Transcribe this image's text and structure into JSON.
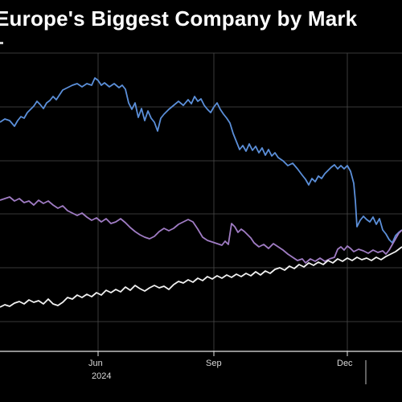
{
  "chart_data": {
    "type": "line",
    "title": "Europe's Biggest Company by Mark",
    "x_tick_labels": [
      "Jun",
      "Sep",
      "Dec"
    ],
    "x_year_label": "2024",
    "grid": true,
    "legend": "none",
    "y_axis": "unlabeled",
    "series": [
      {
        "color": "#5b8fd9",
        "points": [
          [
            0,
            152
          ],
          [
            6,
            148
          ],
          [
            12,
            150
          ],
          [
            18,
            157
          ],
          [
            22,
            150
          ],
          [
            26,
            145
          ],
          [
            30,
            147
          ],
          [
            34,
            140
          ],
          [
            38,
            136
          ],
          [
            42,
            132
          ],
          [
            46,
            126
          ],
          [
            50,
            130
          ],
          [
            54,
            135
          ],
          [
            58,
            128
          ],
          [
            62,
            125
          ],
          [
            66,
            120
          ],
          [
            70,
            124
          ],
          [
            74,
            118
          ],
          [
            78,
            112
          ],
          [
            84,
            109
          ],
          [
            90,
            106
          ],
          [
            96,
            104
          ],
          [
            102,
            108
          ],
          [
            108,
            104
          ],
          [
            114,
            106
          ],
          [
            118,
            97
          ],
          [
            122,
            100
          ],
          [
            126,
            106
          ],
          [
            130,
            103
          ],
          [
            136,
            108
          ],
          [
            142,
            104
          ],
          [
            148,
            109
          ],
          [
            152,
            106
          ],
          [
            156,
            111
          ],
          [
            160,
            128
          ],
          [
            164,
            136
          ],
          [
            168,
            128
          ],
          [
            172,
            146
          ],
          [
            176,
            135
          ],
          [
            180,
            150
          ],
          [
            184,
            138
          ],
          [
            188,
            147
          ],
          [
            192,
            152
          ],
          [
            196,
            163
          ],
          [
            200,
            147
          ],
          [
            204,
            142
          ],
          [
            210,
            136
          ],
          [
            216,
            131
          ],
          [
            222,
            126
          ],
          [
            228,
            131
          ],
          [
            234,
            124
          ],
          [
            238,
            129
          ],
          [
            242,
            120
          ],
          [
            246,
            126
          ],
          [
            250,
            123
          ],
          [
            254,
            131
          ],
          [
            258,
            136
          ],
          [
            262,
            140
          ],
          [
            266,
            133
          ],
          [
            270,
            128
          ],
          [
            274,
            136
          ],
          [
            278,
            142
          ],
          [
            282,
            147
          ],
          [
            286,
            153
          ],
          [
            290,
            166
          ],
          [
            294,
            176
          ],
          [
            298,
            186
          ],
          [
            302,
            181
          ],
          [
            306,
            188
          ],
          [
            310,
            179
          ],
          [
            314,
            187
          ],
          [
            318,
            182
          ],
          [
            322,
            190
          ],
          [
            326,
            184
          ],
          [
            330,
            193
          ],
          [
            334,
            186
          ],
          [
            338,
            194
          ],
          [
            342,
            190
          ],
          [
            346,
            196
          ],
          [
            352,
            200
          ],
          [
            358,
            206
          ],
          [
            364,
            203
          ],
          [
            370,
            210
          ],
          [
            376,
            218
          ],
          [
            380,
            223
          ],
          [
            384,
            230
          ],
          [
            388,
            222
          ],
          [
            392,
            226
          ],
          [
            396,
            219
          ],
          [
            400,
            222
          ],
          [
            404,
            216
          ],
          [
            408,
            212
          ],
          [
            412,
            208
          ],
          [
            416,
            205
          ],
          [
            420,
            210
          ],
          [
            424,
            206
          ],
          [
            428,
            210
          ],
          [
            432,
            206
          ],
          [
            436,
            213
          ],
          [
            440,
            228
          ],
          [
            442,
            250
          ],
          [
            444,
            282
          ],
          [
            448,
            274
          ],
          [
            452,
            269
          ],
          [
            456,
            273
          ],
          [
            460,
            276
          ],
          [
            464,
            270
          ],
          [
            468,
            279
          ],
          [
            472,
            272
          ],
          [
            476,
            286
          ],
          [
            480,
            291
          ],
          [
            484,
            298
          ],
          [
            488,
            302
          ],
          [
            492,
            293
          ],
          [
            496,
            289
          ],
          [
            500,
            286
          ]
        ]
      },
      {
        "color": "#a07cc4",
        "points": [
          [
            0,
            249
          ],
          [
            6,
            247
          ],
          [
            12,
            245
          ],
          [
            18,
            250
          ],
          [
            24,
            247
          ],
          [
            30,
            252
          ],
          [
            36,
            250
          ],
          [
            42,
            255
          ],
          [
            48,
            249
          ],
          [
            54,
            253
          ],
          [
            60,
            250
          ],
          [
            66,
            255
          ],
          [
            72,
            259
          ],
          [
            78,
            256
          ],
          [
            84,
            262
          ],
          [
            90,
            265
          ],
          [
            96,
            268
          ],
          [
            102,
            265
          ],
          [
            108,
            270
          ],
          [
            114,
            274
          ],
          [
            120,
            271
          ],
          [
            126,
            276
          ],
          [
            132,
            272
          ],
          [
            138,
            278
          ],
          [
            144,
            276
          ],
          [
            150,
            272
          ],
          [
            156,
            277
          ],
          [
            162,
            283
          ],
          [
            168,
            288
          ],
          [
            174,
            292
          ],
          [
            180,
            295
          ],
          [
            186,
            297
          ],
          [
            192,
            294
          ],
          [
            198,
            288
          ],
          [
            204,
            284
          ],
          [
            210,
            287
          ],
          [
            216,
            284
          ],
          [
            222,
            279
          ],
          [
            228,
            276
          ],
          [
            234,
            273
          ],
          [
            240,
            276
          ],
          [
            246,
            285
          ],
          [
            252,
            295
          ],
          [
            258,
            299
          ],
          [
            264,
            301
          ],
          [
            270,
            303
          ],
          [
            276,
            305
          ],
          [
            280,
            300
          ],
          [
            284,
            304
          ],
          [
            288,
            278
          ],
          [
            292,
            282
          ],
          [
            296,
            289
          ],
          [
            300,
            285
          ],
          [
            304,
            288
          ],
          [
            308,
            292
          ],
          [
            312,
            296
          ],
          [
            316,
            302
          ],
          [
            322,
            307
          ],
          [
            328,
            304
          ],
          [
            334,
            309
          ],
          [
            340,
            303
          ],
          [
            346,
            307
          ],
          [
            352,
            311
          ],
          [
            358,
            316
          ],
          [
            364,
            320
          ],
          [
            370,
            324
          ],
          [
            376,
            322
          ],
          [
            380,
            327
          ],
          [
            386,
            322
          ],
          [
            392,
            325
          ],
          [
            398,
            321
          ],
          [
            404,
            325
          ],
          [
            410,
            322
          ],
          [
            416,
            320
          ],
          [
            420,
            310
          ],
          [
            424,
            307
          ],
          [
            428,
            311
          ],
          [
            432,
            306
          ],
          [
            436,
            309
          ],
          [
            440,
            313
          ],
          [
            446,
            310
          ],
          [
            452,
            312
          ],
          [
            458,
            315
          ],
          [
            464,
            311
          ],
          [
            470,
            314
          ],
          [
            476,
            312
          ],
          [
            480,
            316
          ],
          [
            484,
            311
          ],
          [
            488,
            304
          ],
          [
            492,
            297
          ],
          [
            496,
            290
          ],
          [
            500,
            286
          ]
        ]
      },
      {
        "color": "#f2f2f2",
        "points": [
          [
            0,
            382
          ],
          [
            6,
            379
          ],
          [
            12,
            381
          ],
          [
            18,
            377
          ],
          [
            24,
            375
          ],
          [
            30,
            378
          ],
          [
            36,
            373
          ],
          [
            42,
            376
          ],
          [
            48,
            374
          ],
          [
            54,
            378
          ],
          [
            60,
            372
          ],
          [
            66,
            378
          ],
          [
            72,
            380
          ],
          [
            78,
            376
          ],
          [
            84,
            370
          ],
          [
            90,
            372
          ],
          [
            96,
            367
          ],
          [
            102,
            370
          ],
          [
            108,
            366
          ],
          [
            114,
            369
          ],
          [
            120,
            364
          ],
          [
            126,
            367
          ],
          [
            132,
            361
          ],
          [
            138,
            364
          ],
          [
            144,
            360
          ],
          [
            150,
            363
          ],
          [
            156,
            357
          ],
          [
            162,
            361
          ],
          [
            168,
            355
          ],
          [
            174,
            359
          ],
          [
            180,
            362
          ],
          [
            186,
            358
          ],
          [
            192,
            355
          ],
          [
            198,
            358
          ],
          [
            204,
            356
          ],
          [
            210,
            360
          ],
          [
            216,
            354
          ],
          [
            222,
            350
          ],
          [
            228,
            352
          ],
          [
            234,
            348
          ],
          [
            240,
            351
          ],
          [
            246,
            346
          ],
          [
            252,
            349
          ],
          [
            258,
            344
          ],
          [
            264,
            347
          ],
          [
            270,
            343
          ],
          [
            276,
            346
          ],
          [
            282,
            342
          ],
          [
            288,
            345
          ],
          [
            294,
            341
          ],
          [
            300,
            344
          ],
          [
            306,
            340
          ],
          [
            312,
            343
          ],
          [
            318,
            338
          ],
          [
            324,
            342
          ],
          [
            330,
            337
          ],
          [
            336,
            340
          ],
          [
            342,
            335
          ],
          [
            348,
            333
          ],
          [
            354,
            336
          ],
          [
            360,
            331
          ],
          [
            366,
            334
          ],
          [
            372,
            329
          ],
          [
            378,
            332
          ],
          [
            384,
            327
          ],
          [
            390,
            330
          ],
          [
            396,
            326
          ],
          [
            402,
            329
          ],
          [
            408,
            324
          ],
          [
            414,
            327
          ],
          [
            420,
            322
          ],
          [
            426,
            325
          ],
          [
            432,
            321
          ],
          [
            438,
            324
          ],
          [
            444,
            320
          ],
          [
            450,
            323
          ],
          [
            456,
            321
          ],
          [
            462,
            324
          ],
          [
            468,
            320
          ],
          [
            474,
            323
          ],
          [
            480,
            319
          ],
          [
            486,
            316
          ],
          [
            492,
            313
          ],
          [
            496,
            310
          ],
          [
            500,
            307
          ]
        ]
      }
    ]
  }
}
